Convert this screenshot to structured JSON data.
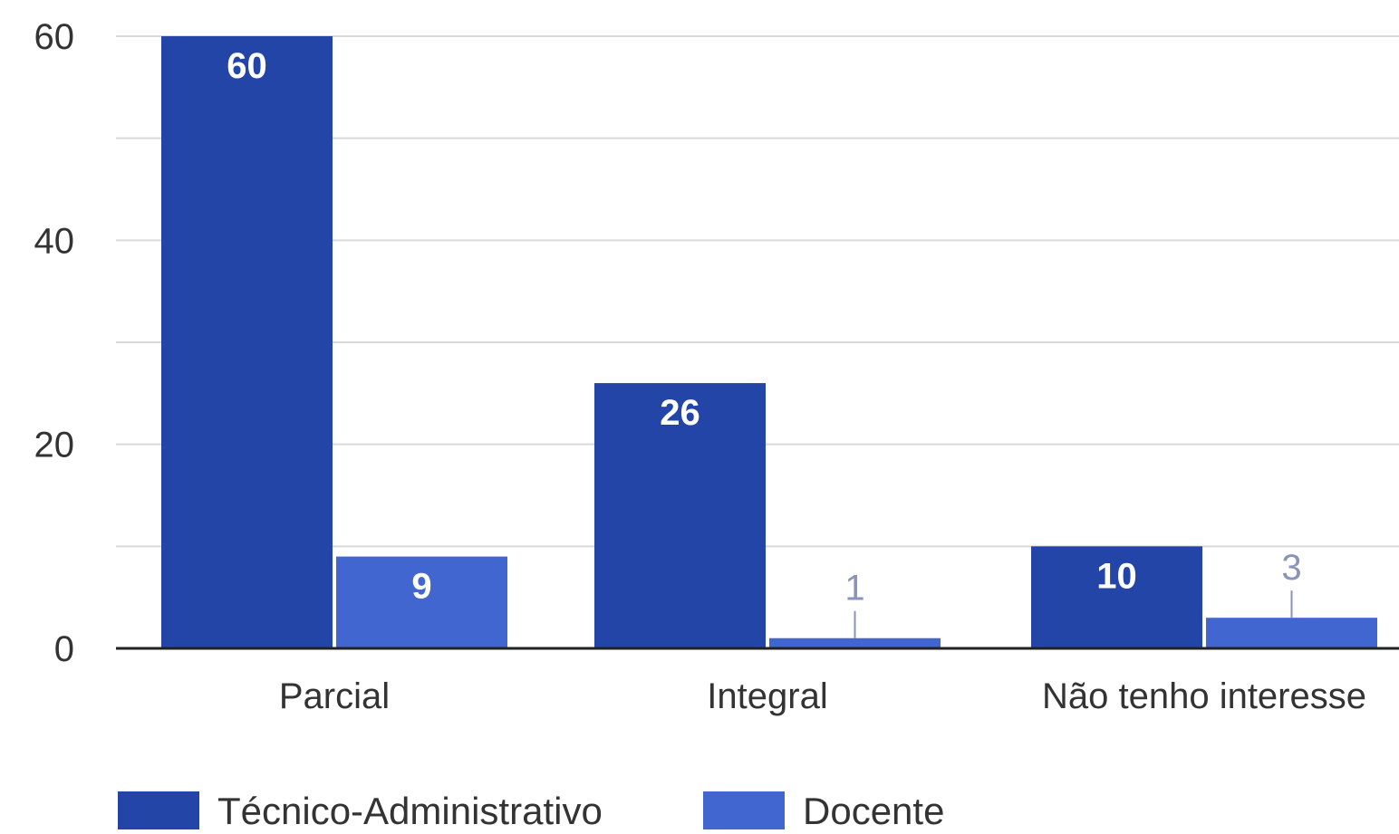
{
  "chart_data": {
    "type": "bar",
    "title": "",
    "xlabel": "",
    "ylabel": "",
    "categories": [
      "Parcial",
      "Integral",
      "Não tenho interesse"
    ],
    "series": [
      {
        "name": "Técnico-Administrativo",
        "values": [
          60,
          26,
          10
        ],
        "color": "#2345a8"
      },
      {
        "name": "Docente",
        "values": [
          9,
          1,
          3
        ],
        "color": "#4166cf"
      }
    ],
    "ylim": [
      0,
      60
    ],
    "yticks": [
      0,
      20,
      40,
      60
    ],
    "grid": true,
    "legend_position": "bottom",
    "data_labels": true,
    "colors": {
      "grid": "#d9d9d9",
      "axis": "#222222",
      "tick_text": "#333333",
      "label_inside": "#ffffff",
      "label_outside": "#8a93b8"
    }
  }
}
